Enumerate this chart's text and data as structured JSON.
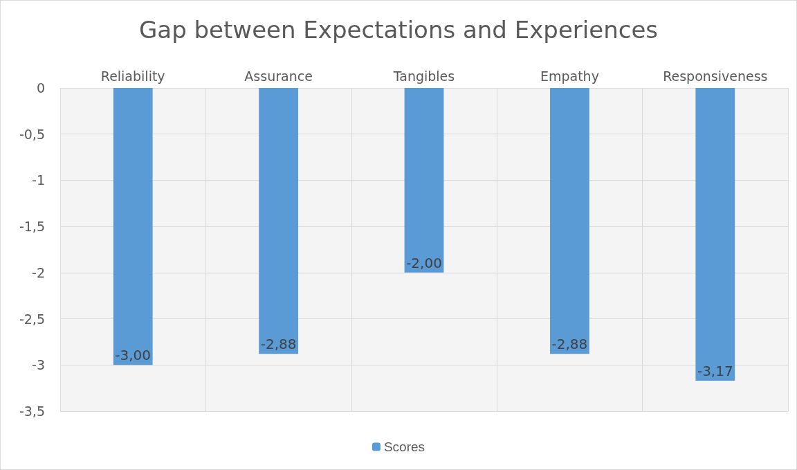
{
  "chart_data": {
    "type": "bar",
    "title": "Gap between Expectations and Experiences",
    "categories": [
      "Reliability",
      "Assurance",
      "Tangibles",
      "Empathy",
      "Responsiveness"
    ],
    "series": [
      {
        "name": "Scores",
        "color": "#5b9bd5",
        "values": [
          -3.0,
          -2.88,
          -2.0,
          -2.88,
          -3.17
        ],
        "value_labels": [
          "-3,00",
          "-2,88",
          "-2,00",
          "-2,88",
          "-3,17"
        ]
      }
    ],
    "ylim": [
      -3.5,
      0
    ],
    "yticks": [
      0,
      {
        "value": -0.5,
        "label": "-0,5"
      },
      -1,
      {
        "value": -1.5,
        "label": "-1,5"
      },
      -2,
      {
        "value": -2.5,
        "label": "-2,5"
      },
      -3,
      {
        "value": -3.5,
        "label": "-3,5"
      }
    ],
    "grid": true,
    "legend": "bottom"
  }
}
